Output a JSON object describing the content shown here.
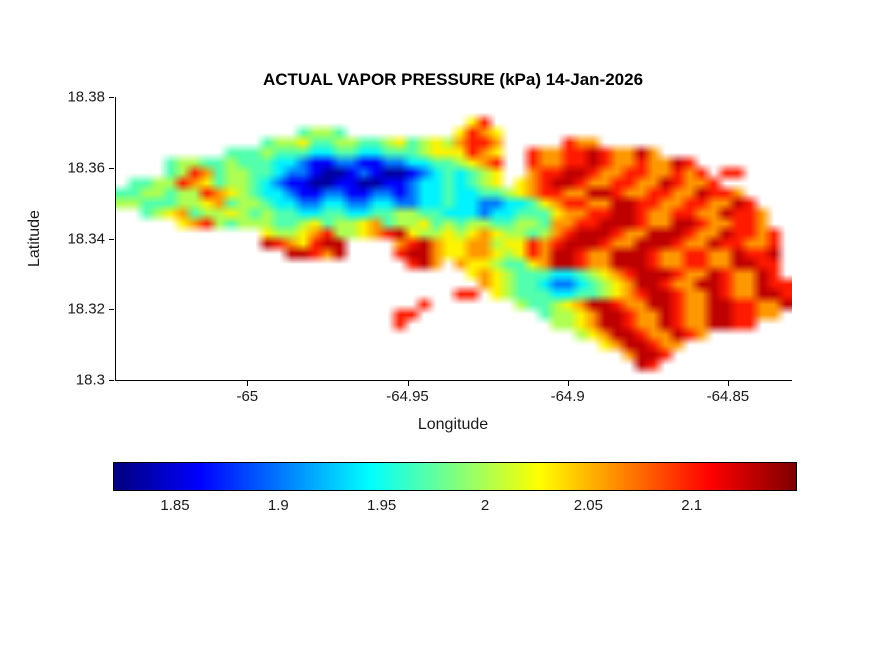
{
  "chart_data": {
    "type": "heatmap",
    "title": "ACTUAL VAPOR PRESSURE (kPa) 14-Jan-2026",
    "xlabel": "Longitude",
    "ylabel": "Latitude",
    "xlim": [
      -65.0413,
      -64.8303
    ],
    "ylim": [
      18.3,
      18.38
    ],
    "x_ticks": [
      -65,
      -64.95,
      -64.9,
      -64.85
    ],
    "x_tick_labels": [
      "-65",
      "-64.95",
      "-64.9",
      "-64.85"
    ],
    "y_ticks": [
      18.38,
      18.36,
      18.34,
      18.32,
      18.3
    ],
    "y_tick_labels": [
      "18.38",
      "18.36",
      "18.34",
      "18.32",
      "18.3"
    ],
    "grid_lines": false,
    "legend": "none",
    "colormap": "jet",
    "units": "kPa",
    "background": "#ffffff",
    "text_color": "#1a1a1a",
    "colorbar": {
      "orientation": "horizontal",
      "position": "bottom",
      "vmin": 1.82,
      "vmax": 2.15,
      "ticks": [
        1.85,
        1.9,
        1.95,
        2,
        2.05,
        2.1
      ],
      "tick_labels": [
        "1.85",
        "1.9",
        "1.95",
        "2",
        "2.05",
        "2.1"
      ]
    },
    "grid": {
      "ncols": 56,
      "nrows": 28,
      "sea_char": ".",
      "value_key": {
        "a": 1.83,
        "b": 1.86,
        "c": 1.9,
        "d": 1.94,
        "e": 1.97,
        "f": 2.0,
        "g": 2.03,
        "h": 2.06,
        "i": 2.1,
        "j": 2.13
      },
      "rows": [
        "........................................................",
        "........................................................",
        ".............................gi.........................",
        "...............effe.........gihg........................",
        "............effgeeffeefgefgfhiih.....ihh................",
        ".........eeefeeeddeeddeeefgggihg..ihhiijihhjh...........",
        "....effeefeeeddcbbccbbccddeefghi..ihhiijihhihhji........",
        "....efiheffeedccbaabcbaabcdedefg..hiijjihhiihhihi.ii....",
        ".eeffihgeffedcbbaabbaabbcddedefg.ghijjihhiihhjihhi......",
        "eeffeffihgfeddcbbccbbccbcddeddeefghiihhjjihhiihhjiih....",
        "ffeeeffgheffeddccddccddccddeddccddeghiihhjjiihhiihhji...",
        "..efgheffgfefeeddeeddeeffeedddcddeeeghhiijjihhiihhjiih..",
        ".....ghifefffeefgeffgheffgefeffeeffehhiijjjihhjjihhiih..",
        "............gffghiffghijgffgfghgffefhijjjihhjjjihhjiihi.",
        "............jihgijj....hijhgghhfggihijjjihhjjjihhjiihhi.",
        "..............jjihj....ijjhgghhgfgihjjihhjjjihhiihhjiij.",
        "........................ijh.hggfeeghjjihhjjjihhiihhjjii.",
        ".............................ghgfeeeddefghijjjihhjihhji.",
        "..............................hgfeedccdefghjjihhjjihhjii",
        "............................ii.gfeeeddeefghijjihhjihhjji",
        ".........................i.......feefghjjihhjjihhjjiihhj",
        ".......................ii..........effghjjihhjihhjjiihh.",
        ".......................i............ffghjjihhjihhjjii...",
        "......................................fghjjihhjih.......",
        "........................................ghjjihh.........",
        "..........................................hjji..........",
        "...........................................ji...........",
        "........................................................"
      ]
    }
  }
}
